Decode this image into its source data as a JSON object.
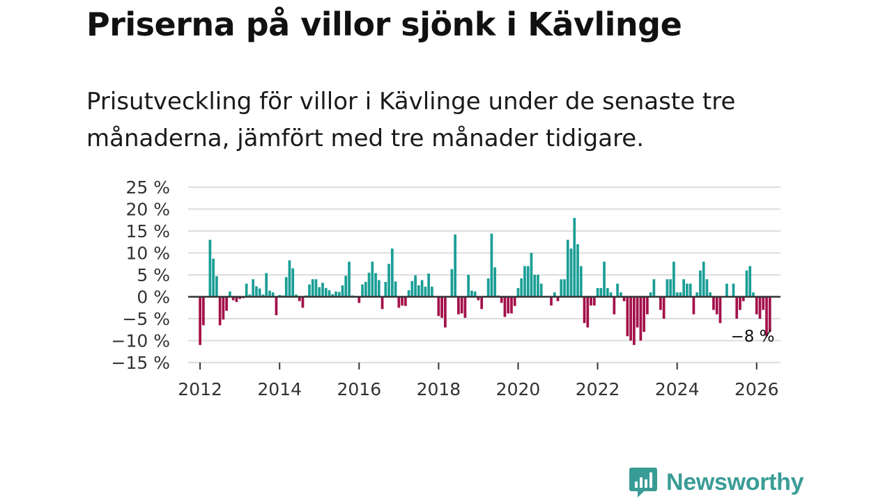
{
  "header": {
    "title": "Priserna på villor sjönk i Kävlinge",
    "subtitle": "Prisutveckling för villor i Kävlinge under de senaste tre månaderna, jämfört med tre månader tidigare."
  },
  "brand": {
    "name": "Newsworthy",
    "icon": "newsworthy-logo-icon",
    "color": "#3a9c96"
  },
  "chart_data": {
    "type": "bar",
    "title": "",
    "xlabel": "",
    "ylabel": "",
    "ylim": [
      -15,
      25
    ],
    "xlim": [
      2011.7,
      2026.6
    ],
    "y_ticks": [
      -15,
      -10,
      -5,
      0,
      5,
      10,
      15,
      20,
      25
    ],
    "y_tick_labels": [
      "−15 %",
      "−10 %",
      "−5 %",
      "0 %",
      "5 %",
      "10 %",
      "15 %",
      "20 %",
      "25 %"
    ],
    "x_ticks": [
      2012,
      2014,
      2016,
      2018,
      2020,
      2022,
      2024,
      2026
    ],
    "x_tick_labels": [
      "2012",
      "2014",
      "2016",
      "2018",
      "2020",
      "2022",
      "2024",
      "2026"
    ],
    "grid": true,
    "positive_color": "#1a9e96",
    "negative_color": "#a3104a",
    "annotation": {
      "text": "−8 %",
      "x": 2025.917,
      "y": -8
    },
    "x_start": 2012.0,
    "x_step": 0.08333,
    "values": [
      -11,
      -6.5,
      0,
      13,
      8.7,
      4.7,
      -6.5,
      -5.2,
      -3.2,
      1.2,
      -0.8,
      -1.2,
      -0.5,
      -0.3,
      3,
      0.5,
      4,
      2.4,
      1.9,
      0.5,
      5.4,
      1.4,
      1,
      -4.2,
      0.4,
      0.3,
      4.5,
      8.3,
      6.5,
      0.5,
      -1,
      -2.5,
      0.3,
      2.8,
      4,
      4,
      2.2,
      3.2,
      2,
      1.5,
      0.6,
      1.2,
      1.1,
      2.6,
      4.8,
      8,
      0.3,
      0.2,
      -1.4,
      2.8,
      3.4,
      5.5,
      8,
      5.4,
      3.8,
      -2.8,
      3.4,
      7.5,
      11,
      3.5,
      -2.5,
      -2,
      -2.1,
      1.5,
      3.6,
      4.9,
      2.6,
      3.8,
      2.3,
      5.3,
      2.3,
      0.1,
      -4.4,
      -4.8,
      -7,
      0,
      6.3,
      14.2,
      -4,
      -3.8,
      -4.8,
      5,
      1.4,
      1.2,
      -0.8,
      -2.8,
      0.2,
      4.2,
      14.4,
      6.7,
      0.3,
      -1.4,
      -4.6,
      -3.8,
      -3.8,
      -2.1,
      2,
      4.2,
      7,
      7,
      10,
      5,
      5,
      3,
      -0.1,
      -0.1,
      -2,
      1,
      -1,
      4,
      4,
      13,
      11,
      18,
      12,
      7,
      -6,
      -7,
      -2,
      -2,
      2,
      2,
      8,
      2,
      1,
      -4,
      3,
      1,
      -1,
      -9,
      -10,
      -11,
      -7,
      -10,
      -8,
      -4,
      1,
      4,
      0.1,
      -3,
      -5,
      4,
      4,
      8,
      1,
      1,
      4,
      3,
      3,
      -4,
      1,
      6,
      8,
      4,
      1,
      -3,
      -4,
      -6,
      0.1,
      3,
      0.1,
      3,
      -5,
      -3,
      -1,
      6,
      7,
      1,
      -4,
      -5,
      -3,
      -9,
      -8
    ]
  }
}
